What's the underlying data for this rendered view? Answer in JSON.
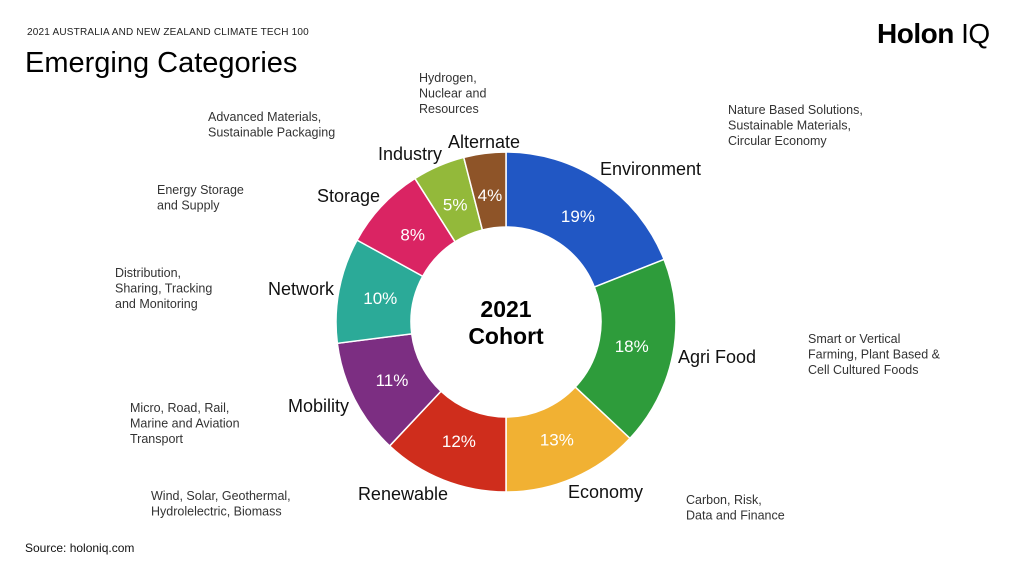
{
  "header": {
    "kicker": "2021 AUSTRALIA AND NEW ZEALAND CLIMATE TECH 100",
    "title": "Emerging Categories",
    "logo_main": "Holon",
    "logo_suffix": "IQ"
  },
  "footer": {
    "source": "Source: holoniq.com"
  },
  "chart_data": {
    "type": "pie",
    "style": "donut",
    "center_text": [
      "2021",
      "Cohort"
    ],
    "title": "Emerging Categories",
    "slices": [
      {
        "label": "Environment",
        "value": 19,
        "value_label": "19%",
        "color": "#2157c4",
        "description": [
          "Nature Based Solutions,",
          "Sustainable Materials,",
          "Circular Economy"
        ]
      },
      {
        "label": "Agri Food",
        "value": 18,
        "value_label": "18%",
        "color": "#2e9c3b",
        "description": [
          "Smart or Vertical",
          "Farming, Plant Based &",
          "Cell Cultured Foods"
        ]
      },
      {
        "label": "Economy",
        "value": 13,
        "value_label": "13%",
        "color": "#f1b133",
        "description": [
          "Carbon, Risk,",
          "Data and Finance"
        ]
      },
      {
        "label": "Renewable",
        "value": 12,
        "value_label": "12%",
        "color": "#cf2d1c",
        "description": [
          "Wind, Solar, Geothermal,",
          "Hydrolelectric, Biomass"
        ]
      },
      {
        "label": "Mobility",
        "value": 11,
        "value_label": "11%",
        "color": "#7c2e82",
        "description": [
          "Micro, Road, Rail,",
          "Marine and Aviation",
          "Transport"
        ]
      },
      {
        "label": "Network",
        "value": 10,
        "value_label": "10%",
        "color": "#2baa98",
        "description": [
          "Distribution,",
          "Sharing, Tracking",
          "and Monitoring"
        ]
      },
      {
        "label": "Storage",
        "value": 8,
        "value_label": "8%",
        "color": "#da2463",
        "description": [
          "Energy Storage",
          "and Supply"
        ]
      },
      {
        "label": "Industry",
        "value": 5,
        "value_label": "5%",
        "color": "#93b93a",
        "description": [
          "Advanced Materials,",
          "Sustainable Packaging"
        ]
      },
      {
        "label": "Alternate",
        "value": 4,
        "value_label": "4%",
        "color": "#8e5428",
        "description": [
          "Hydrogen,",
          "Nuclear and",
          "Resources"
        ]
      }
    ]
  }
}
